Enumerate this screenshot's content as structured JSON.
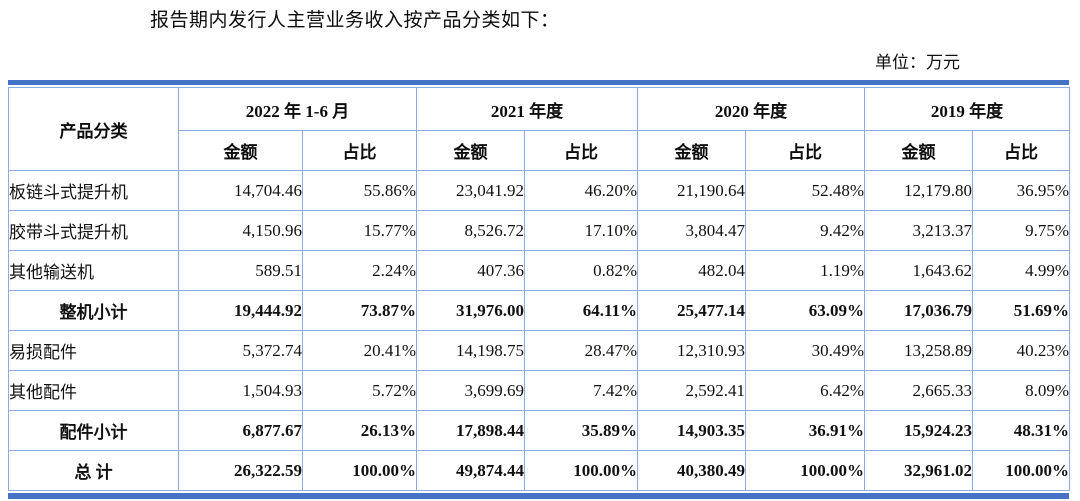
{
  "page": {
    "title": "报告期内发行人主营业务收入按产品分类如下：",
    "unit_label": "单位：万元"
  },
  "table": {
    "product_col_header": "产品分类",
    "period_headers": [
      "2022 年 1-6 月",
      "2021 年度",
      "2020 年度",
      "2019 年度"
    ],
    "sub_headers": {
      "amount": "金额",
      "ratio": "占比"
    },
    "rows": [
      {
        "label": "板链斗式提升机",
        "bold": false,
        "values": [
          "14,704.46",
          "55.86%",
          "23,041.92",
          "46.20%",
          "21,190.64",
          "52.48%",
          "12,179.80",
          "36.95%"
        ]
      },
      {
        "label": "胶带斗式提升机",
        "bold": false,
        "values": [
          "4,150.96",
          "15.77%",
          "8,526.72",
          "17.10%",
          "3,804.47",
          "9.42%",
          "3,213.37",
          "9.75%"
        ]
      },
      {
        "label": "其他输送机",
        "bold": false,
        "values": [
          "589.51",
          "2.24%",
          "407.36",
          "0.82%",
          "482.04",
          "1.19%",
          "1,643.62",
          "4.99%"
        ]
      },
      {
        "label": "整机小计",
        "bold": true,
        "values": [
          "19,444.92",
          "73.87%",
          "31,976.00",
          "64.11%",
          "25,477.14",
          "63.09%",
          "17,036.79",
          "51.69%"
        ]
      },
      {
        "label": "易损配件",
        "bold": false,
        "values": [
          "5,372.74",
          "20.41%",
          "14,198.75",
          "28.47%",
          "12,310.93",
          "30.49%",
          "13,258.89",
          "40.23%"
        ]
      },
      {
        "label": "其他配件",
        "bold": false,
        "values": [
          "1,504.93",
          "5.72%",
          "3,699.69",
          "7.42%",
          "2,592.41",
          "6.42%",
          "2,665.33",
          "8.09%"
        ]
      },
      {
        "label": "配件小计",
        "bold": true,
        "values": [
          "6,877.67",
          "26.13%",
          "17,898.44",
          "35.89%",
          "14,903.35",
          "36.91%",
          "15,924.23",
          "48.31%"
        ]
      },
      {
        "label": "总  计",
        "bold": true,
        "values": [
          "26,322.59",
          "100.00%",
          "49,874.44",
          "100.00%",
          "40,380.49",
          "100.00%",
          "32,961.02",
          "100.00%"
        ]
      }
    ]
  },
  "colors": {
    "thick_border": "#4472c4",
    "grid_border": "#8faadc"
  }
}
